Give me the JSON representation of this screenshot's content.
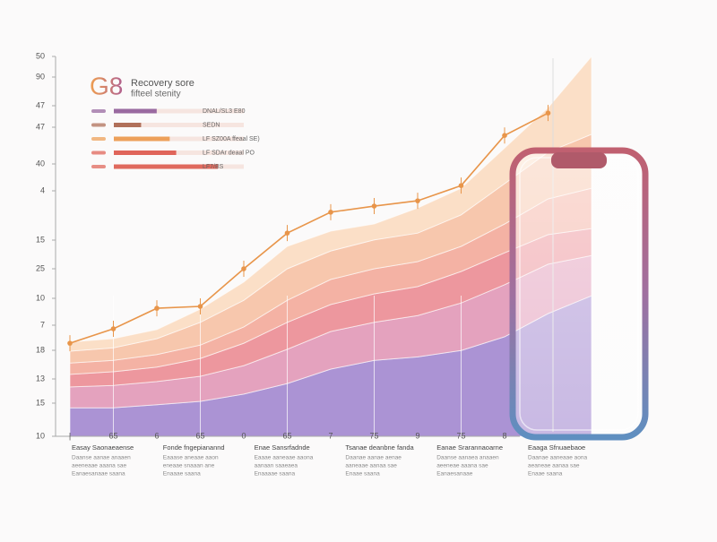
{
  "chart_data": {
    "type": "area",
    "stacked": true,
    "badge": "G8",
    "title": "Recovery sore",
    "subtitle": "fifteel stenity",
    "y_labels": [
      "50",
      "90",
      "47",
      "47",
      "40",
      "4",
      "15",
      "25",
      "10",
      "7",
      "18",
      "13",
      "15",
      "10"
    ],
    "categories": [
      "|",
      "65",
      "6",
      "65",
      "0",
      "65",
      "7",
      "75",
      "9",
      "75",
      "8",
      null,
      null
    ],
    "ylim": [
      0,
      100
    ],
    "series": [
      {
        "color": "#a48ad0",
        "values": [
          7.5,
          7.5,
          8.3,
          9.2,
          11.1,
          13.9,
          17.7,
          20,
          20.9,
          22.6,
          26.2,
          32.3,
          37
        ]
      },
      {
        "color": "#e29ab8",
        "values": [
          5.5,
          5.9,
          6.1,
          6.6,
          7.5,
          9,
          9.9,
          10,
          10.9,
          12.5,
          13.7,
          13,
          10.6
        ]
      },
      {
        "color": "#ec8e96",
        "values": [
          3.3,
          3.6,
          3.8,
          4.7,
          5.9,
          7.1,
          7.1,
          7.5,
          7.6,
          8.3,
          8.4,
          7.8,
          7.1
        ]
      },
      {
        "color": "#f3ab9c",
        "values": [
          3,
          3,
          3.3,
          3.5,
          4.3,
          5.8,
          6.6,
          6.6,
          6.6,
          6.6,
          7.6,
          9.4,
          10.6
        ]
      },
      {
        "color": "#f6c2a6",
        "values": [
          3.1,
          3.3,
          4.2,
          6,
          7,
          8.3,
          7.5,
          7.6,
          7.5,
          8.3,
          10.6,
          12.3,
          14.2
        ]
      },
      {
        "color": "#fbdcc2",
        "values": [
          2.4,
          2.4,
          2.4,
          3.5,
          4.8,
          5.9,
          5.2,
          4.2,
          6.6,
          7,
          9.4,
          11.7,
          20.5
        ]
      }
    ],
    "trend": {
      "color": "#e8954a",
      "values": [
        24.5,
        28.3,
        33.7,
        34.2,
        44.1,
        53.5,
        59,
        60.6,
        62,
        66,
        79.2,
        85.1,
        null
      ]
    },
    "bar_rows": [
      {
        "label": "DNAL/SL3 E80",
        "color": "#9a6aa0",
        "value": 33
      },
      {
        "label": "SEDN",
        "color": "#b0705a",
        "value": 21
      },
      {
        "label": "LF SZ00A ffeaal SE)",
        "color": "#eda05a",
        "value": 43
      },
      {
        "label": "LF SDAr deaal PO",
        "color": "#e0655a",
        "value": 48
      },
      {
        "label": "LF7/BS",
        "color": "#e06a5e",
        "value": 80
      }
    ],
    "captions": [
      {
        "title": "Easay Saonaeaense",
        "lines": [
          "Daanse aanae anaaen",
          "aeeneaae aaana sae",
          "Eanaesanaae saana"
        ]
      },
      {
        "title": "Fonde fngepianannd",
        "lines": [
          "Eaaase aneaae aaon",
          "eneaae snaaan ane",
          "Enaaae saana"
        ]
      },
      {
        "title": "Enae Sansrfadnde",
        "lines": [
          "Eaaae aaneaae aaona",
          "aanaan saaeaea",
          "Enaaaae saana"
        ]
      },
      {
        "title": "Tsanae deanbne fanda",
        "lines": [
          "Daanae aanae aenae",
          "aaneaae aanaa sae",
          "Enaae saana"
        ]
      },
      {
        "title": "Eanae Srarannaoarne",
        "lines": [
          "Daanse aanaea anaaen",
          "aeeneae aaana sae",
          "Eanaesanaae"
        ]
      },
      {
        "title": "Eaaga Sfnuaebaoe",
        "lines": [
          "Daanae aaneaae aona",
          "aeaneae aanaa sae",
          "Enaae saana"
        ]
      }
    ]
  }
}
